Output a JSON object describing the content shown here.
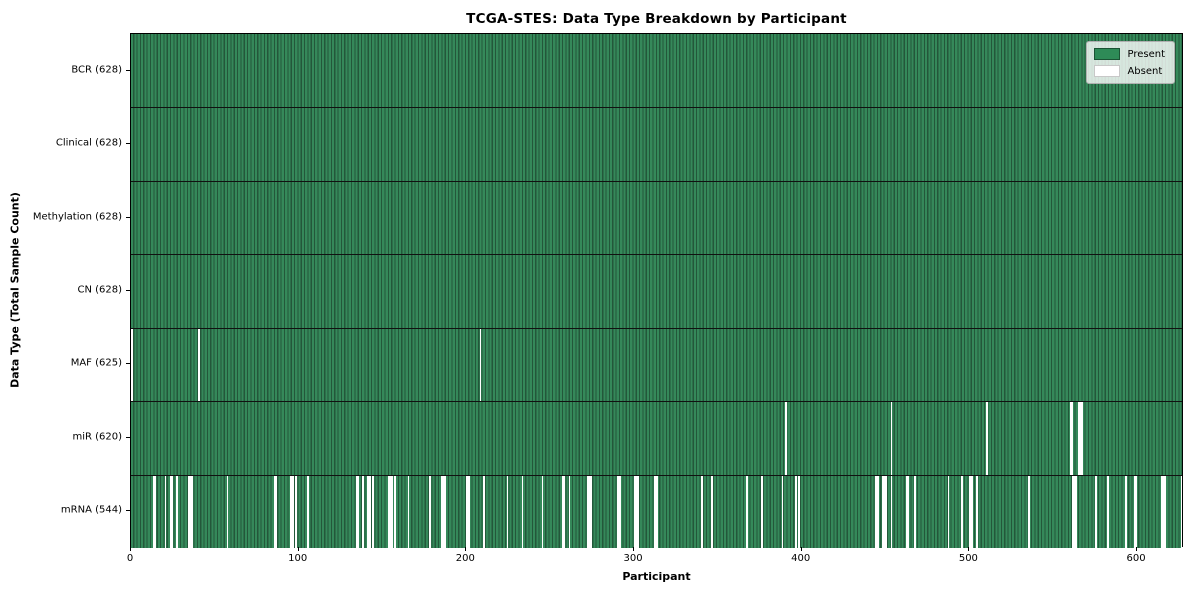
{
  "figure": {
    "title": "TCGA-STES: Data Type Breakdown by Participant",
    "xlabel": "Participant",
    "ylabel": "Data Type (Total Sample Count)"
  },
  "legend": {
    "present_label": "Present",
    "absent_label": "Absent"
  },
  "colors": {
    "present": "#2e8b57",
    "present_stripe_light": "#35895a",
    "present_stripe_dark": "#23583a",
    "absent": "#ffffff",
    "axis": "#000000",
    "legend_bg": "rgba(255,255,255,0.8)"
  },
  "chart_data": {
    "type": "heatmap",
    "title": "TCGA-STES: Data Type Breakdown by Participant",
    "xlabel": "Participant",
    "ylabel": "Data Type (Total Sample Count)",
    "x_ticks": [
      0,
      100,
      200,
      300,
      400,
      500,
      600
    ],
    "xlim": [
      0,
      628
    ],
    "n_participants": 628,
    "grid": false,
    "legend_position": "upper right",
    "cell_states": [
      "Present",
      "Absent"
    ],
    "rows": [
      {
        "label": "BCR (628)",
        "data_type": "BCR",
        "present_count": 628,
        "absent_count": 0,
        "absent_indices": []
      },
      {
        "label": "Clinical (628)",
        "data_type": "Clinical",
        "present_count": 628,
        "absent_count": 0,
        "absent_indices": []
      },
      {
        "label": "Methylation (628)",
        "data_type": "Methylation",
        "present_count": 628,
        "absent_count": 0,
        "absent_indices": []
      },
      {
        "label": "CN (628)",
        "data_type": "CN",
        "present_count": 628,
        "absent_count": 0,
        "absent_indices": []
      },
      {
        "label": "MAF (625)",
        "data_type": "MAF",
        "present_count": 625,
        "absent_count": 3,
        "absent_indices": [
          0,
          40,
          208
        ]
      },
      {
        "label": "miR (620)",
        "data_type": "miR",
        "present_count": 620,
        "absent_count": 8,
        "absent_indices": [
          390,
          453,
          510,
          560,
          561,
          565,
          566,
          567
        ]
      },
      {
        "label": "mRNA (544)",
        "data_type": "mRNA",
        "present_count": 544,
        "absent_count": 84,
        "absent_indices": [
          13,
          14,
          20,
          23,
          24,
          27,
          34,
          35,
          36,
          57,
          85,
          86,
          95,
          96,
          98,
          105,
          134,
          135,
          138,
          141,
          142,
          144,
          153,
          154,
          155,
          157,
          165,
          178,
          185,
          186,
          187,
          200,
          201,
          210,
          224,
          233,
          245,
          257,
          258,
          261,
          272,
          273,
          274,
          290,
          291,
          300,
          301,
          302,
          312,
          313,
          340,
          346,
          367,
          376,
          388,
          396,
          398,
          444,
          445,
          448,
          449,
          450,
          453,
          462,
          463,
          467,
          487,
          495,
          500,
          501,
          504,
          535,
          561,
          562,
          563,
          575,
          582,
          593,
          598,
          599,
          614,
          615,
          616,
          626
        ]
      }
    ]
  }
}
